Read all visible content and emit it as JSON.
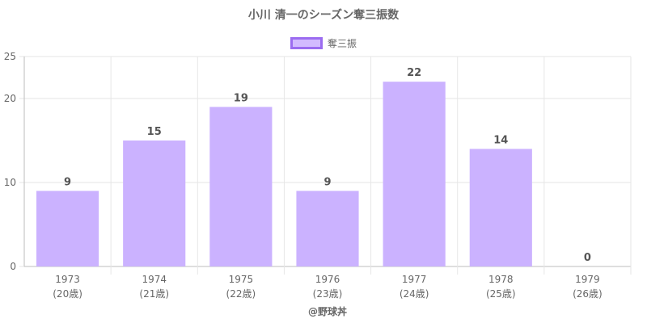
{
  "chart_data": {
    "type": "bar",
    "title": "小川 清一のシーズン奪三振数",
    "categories": [
      "1973",
      "1974",
      "1975",
      "1976",
      "1977",
      "1978",
      "1979"
    ],
    "category_sublabels": [
      "(20歳)",
      "(21歳)",
      "(22歳)",
      "(23歳)",
      "(24歳)",
      "(25歳)",
      "(26歳)"
    ],
    "series": [
      {
        "name": "奪三振",
        "values": [
          9,
          15,
          19,
          9,
          22,
          14,
          0
        ]
      }
    ],
    "ylim": [
      0,
      25
    ],
    "yticks": [
      0,
      10,
      20,
      25
    ],
    "grid": true,
    "legend_position": "top",
    "bar_color": "#cbb2ff",
    "bar_border_color": "#9b6cf0",
    "source": "@野球丼"
  }
}
